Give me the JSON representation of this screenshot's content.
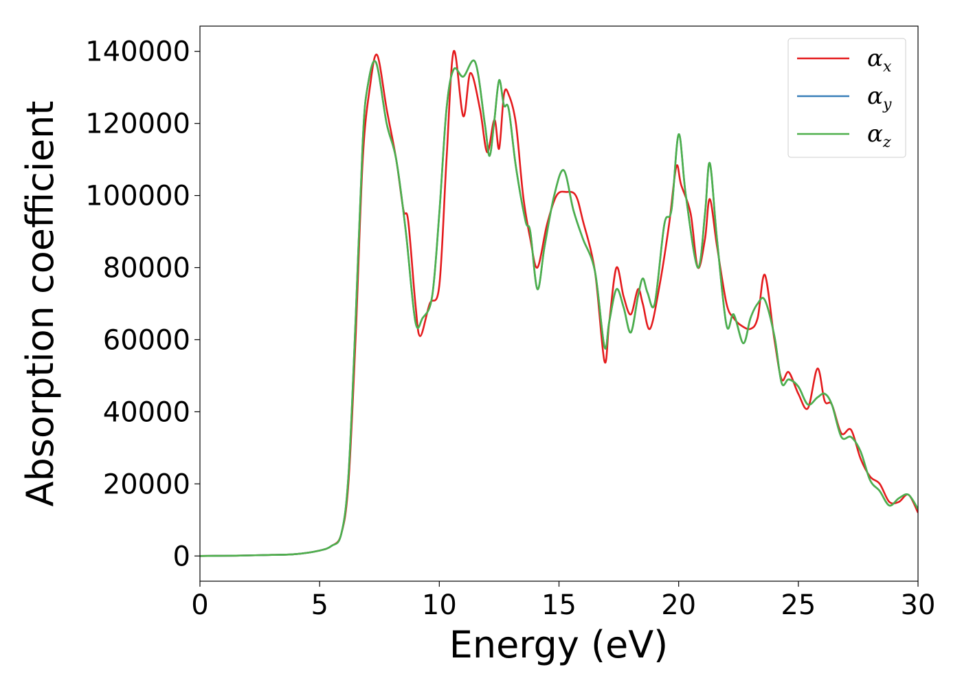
{
  "chart_data": {
    "type": "line",
    "title": "",
    "xlabel": "Energy (eV)",
    "ylabel": "Absorption coefficient",
    "xlim": [
      0,
      30
    ],
    "ylim": [
      -7000,
      147000
    ],
    "xticks": [
      0,
      5,
      10,
      15,
      20,
      25,
      30
    ],
    "yticks": [
      0,
      20000,
      40000,
      60000,
      80000,
      100000,
      120000,
      140000
    ],
    "grid": false,
    "legend": "top-right",
    "series": [
      {
        "name": "α",
        "subscript": "x",
        "color": "#e41a1c",
        "x": [
          0,
          1,
          2,
          3,
          4,
          5,
          5.5,
          5.9,
          6.2,
          6.5,
          6.8,
          7.1,
          7.4,
          7.8,
          8.2,
          8.5,
          8.7,
          9.0,
          9.2,
          9.6,
          10.0,
          10.3,
          10.6,
          11.0,
          11.3,
          11.7,
          12.0,
          12.3,
          12.5,
          12.7,
          12.9,
          13.2,
          13.5,
          13.8,
          14.1,
          14.5,
          14.9,
          15.3,
          15.7,
          16.0,
          16.5,
          16.9,
          17.1,
          17.4,
          17.7,
          18.0,
          18.3,
          18.5,
          18.8,
          19.2,
          19.6,
          19.9,
          20.1,
          20.5,
          20.8,
          21.1,
          21.3,
          21.6,
          22.0,
          22.3,
          22.6,
          23.0,
          23.3,
          23.6,
          24.0,
          24.3,
          24.6,
          25.0,
          25.4,
          25.8,
          26.1,
          26.4,
          26.8,
          27.2,
          27.6,
          28.0,
          28.4,
          28.8,
          29.2,
          29.6,
          30.0
        ],
        "y": [
          0,
          50,
          150,
          300,
          500,
          1500,
          2800,
          6000,
          20000,
          60000,
          110000,
          130000,
          139000,
          124000,
          110000,
          96000,
          93000,
          70000,
          61000,
          70000,
          75000,
          110000,
          140000,
          122000,
          134000,
          124000,
          112000,
          121000,
          113000,
          128000,
          128000,
          120000,
          100000,
          88000,
          80000,
          92000,
          100000,
          101000,
          100000,
          93000,
          79000,
          54000,
          65000,
          80000,
          72000,
          67000,
          74000,
          70000,
          63000,
          75000,
          92000,
          108000,
          103000,
          95000,
          80000,
          88000,
          99000,
          86000,
          70000,
          66000,
          64000,
          63000,
          66000,
          78000,
          60000,
          49000,
          51000,
          45000,
          41000,
          52000,
          43000,
          42000,
          34000,
          35000,
          27000,
          22000,
          20000,
          15000,
          15000,
          17000,
          12000
        ]
      },
      {
        "name": "α",
        "subscript": "y",
        "color": "#377eb8",
        "x": [
          0,
          1,
          2,
          3,
          4,
          5,
          5.5,
          5.9,
          6.2,
          6.5,
          6.8,
          7.0,
          7.35,
          7.8,
          8.2,
          8.6,
          9.0,
          9.3,
          9.7,
          10.0,
          10.3,
          10.6,
          11.0,
          11.5,
          11.9,
          12.1,
          12.3,
          12.5,
          12.7,
          12.9,
          13.2,
          13.6,
          13.8,
          14.1,
          14.4,
          14.8,
          15.2,
          15.6,
          16.0,
          16.5,
          16.9,
          17.1,
          17.4,
          17.7,
          18.0,
          18.3,
          18.5,
          18.7,
          19.0,
          19.4,
          19.7,
          20.0,
          20.3,
          20.8,
          21.1,
          21.3,
          21.6,
          22.0,
          22.3,
          22.7,
          23.0,
          23.3,
          23.6,
          24.0,
          24.3,
          24.6,
          25.0,
          25.4,
          25.8,
          26.1,
          26.4,
          26.8,
          27.2,
          27.6,
          28.0,
          28.4,
          28.8,
          29.2,
          29.6,
          30.0
        ],
        "y": [
          0,
          50,
          150,
          300,
          500,
          1500,
          2800,
          6000,
          22000,
          65000,
          115000,
          130000,
          137000,
          120000,
          110000,
          90000,
          65000,
          66000,
          72000,
          95000,
          124000,
          135000,
          133000,
          137000,
          120000,
          111000,
          121000,
          132000,
          125000,
          124000,
          108000,
          93000,
          90000,
          74000,
          86000,
          100000,
          107000,
          96000,
          88000,
          79000,
          58000,
          65000,
          74000,
          69000,
          62000,
          72000,
          77000,
          73000,
          70000,
          92000,
          96000,
          117000,
          100000,
          80000,
          95000,
          109000,
          88000,
          64000,
          67000,
          59000,
          66000,
          70000,
          71000,
          61000,
          48000,
          49000,
          47000,
          42000,
          44000,
          45000,
          42000,
          33000,
          33000,
          29000,
          21000,
          18000,
          14000,
          16000,
          17000,
          13000
        ]
      },
      {
        "name": "α",
        "subscript": "z",
        "color": "#4daf4a",
        "x": [
          0,
          1,
          2,
          3,
          4,
          5,
          5.5,
          5.9,
          6.2,
          6.5,
          6.8,
          7.0,
          7.35,
          7.8,
          8.2,
          8.6,
          9.0,
          9.3,
          9.7,
          10.0,
          10.3,
          10.6,
          11.0,
          11.5,
          11.9,
          12.1,
          12.3,
          12.5,
          12.7,
          12.9,
          13.2,
          13.6,
          13.8,
          14.1,
          14.4,
          14.8,
          15.2,
          15.6,
          16.0,
          16.5,
          16.9,
          17.1,
          17.4,
          17.7,
          18.0,
          18.3,
          18.5,
          18.7,
          19.0,
          19.4,
          19.7,
          20.0,
          20.3,
          20.8,
          21.1,
          21.3,
          21.6,
          22.0,
          22.3,
          22.7,
          23.0,
          23.3,
          23.6,
          24.0,
          24.3,
          24.6,
          25.0,
          25.4,
          25.8,
          26.1,
          26.4,
          26.8,
          27.2,
          27.6,
          28.0,
          28.4,
          28.8,
          29.2,
          29.6,
          30.0
        ],
        "y": [
          0,
          50,
          150,
          300,
          500,
          1500,
          2800,
          6000,
          22000,
          65000,
          115000,
          130000,
          137000,
          120000,
          110000,
          90000,
          65000,
          66000,
          72000,
          95000,
          124000,
          135000,
          133000,
          137000,
          120000,
          111000,
          121000,
          132000,
          125000,
          124000,
          108000,
          93000,
          90000,
          74000,
          86000,
          100000,
          107000,
          96000,
          88000,
          79000,
          58000,
          65000,
          74000,
          69000,
          62000,
          72000,
          77000,
          73000,
          70000,
          92000,
          96000,
          117000,
          100000,
          80000,
          95000,
          109000,
          88000,
          64000,
          67000,
          59000,
          66000,
          70000,
          71000,
          61000,
          48000,
          49000,
          47000,
          42000,
          44000,
          45000,
          42000,
          33000,
          33000,
          29000,
          21000,
          18000,
          14000,
          16000,
          17000,
          13000
        ]
      }
    ]
  }
}
